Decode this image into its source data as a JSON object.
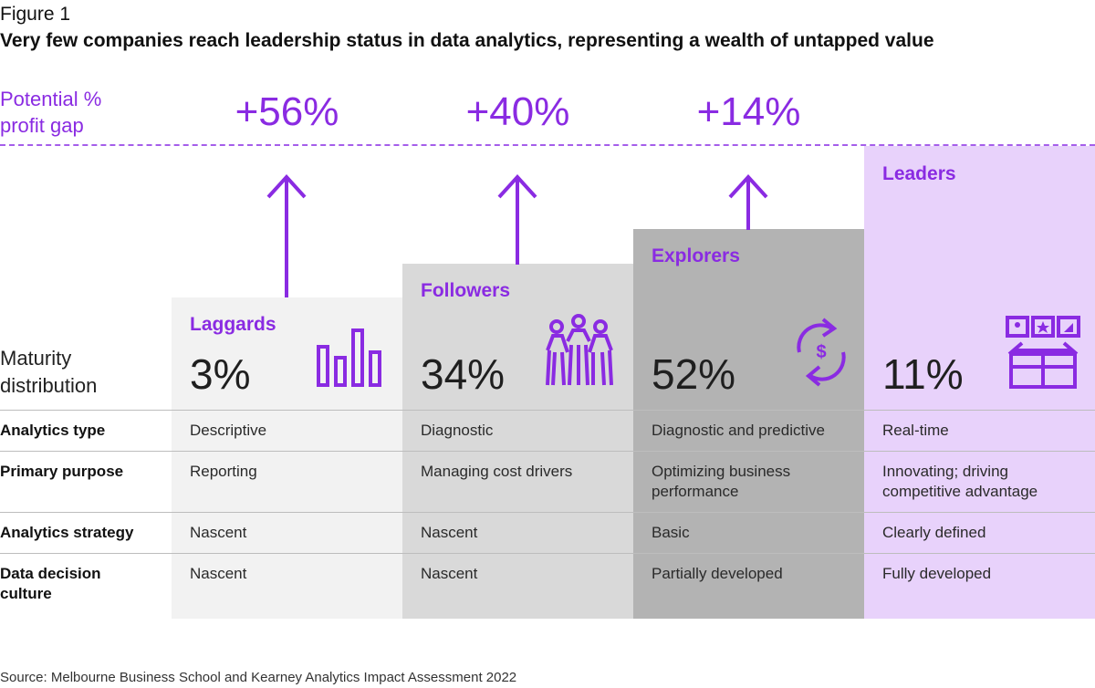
{
  "figure_label": "Figure 1",
  "title": "Very few companies reach leadership status in data analytics, representing a wealth of untapped value",
  "gap_label_line1": "Potential %",
  "gap_label_line2": "profit gap",
  "maturity_label_line1": "Maturity",
  "maturity_label_line2": "distribution",
  "row_labels": {
    "analytics_type": "Analytics type",
    "primary_purpose": "Primary purpose",
    "analytics_strategy": "Analytics strategy",
    "data_decision_culture_l1": "Data decision",
    "data_decision_culture_l2": "culture"
  },
  "source": "Source: Melbourne Business School and Kearney Analytics Impact Assessment 2022",
  "colors": {
    "accent": "#8a2be2",
    "laggards_bg": "#f2f2f2",
    "followers_bg": "#d9d9d9",
    "explorers_bg": "#b3b3b3",
    "leaders_bg": "#e8d2fb"
  },
  "chart_data": {
    "type": "bar",
    "title": "Very few companies reach leadership status in data analytics, representing a wealth of untapped value",
    "categories": [
      "Laggards",
      "Followers",
      "Explorers",
      "Leaders"
    ],
    "series": [
      {
        "name": "Maturity distribution (%)",
        "values": [
          3,
          34,
          52,
          11
        ]
      },
      {
        "name": "Potential % profit gap",
        "values": [
          56,
          40,
          14,
          null
        ]
      }
    ],
    "segments": [
      {
        "name": "Laggards",
        "pct": "3%",
        "gap": "+56%",
        "icon": "bar-chart-icon",
        "analytics_type": "Descriptive",
        "primary_purpose_l1": "Reporting",
        "primary_purpose_l2": "",
        "analytics_strategy": "Nascent",
        "data_decision_culture": "Nascent"
      },
      {
        "name": "Followers",
        "pct": "34%",
        "gap": "+40%",
        "icon": "people-group-icon",
        "analytics_type": "Diagnostic",
        "primary_purpose_l1": "Managing cost drivers",
        "primary_purpose_l2": "",
        "analytics_strategy": "Nascent",
        "data_decision_culture": "Nascent"
      },
      {
        "name": "Explorers",
        "pct": "52%",
        "gap": "+14%",
        "icon": "dollar-cycle-icon",
        "analytics_type": "Diagnostic and predictive",
        "primary_purpose_l1": "Optimizing business",
        "primary_purpose_l2": "performance",
        "analytics_strategy": "Basic",
        "data_decision_culture": "Partially developed"
      },
      {
        "name": "Leaders",
        "pct": "11%",
        "gap": "",
        "icon": "open-box-icon",
        "analytics_type": "Real-time",
        "primary_purpose_l1": "Innovating; driving",
        "primary_purpose_l2": "competitive advantage",
        "analytics_strategy": "Clearly defined",
        "data_decision_culture": "Fully developed"
      }
    ]
  }
}
